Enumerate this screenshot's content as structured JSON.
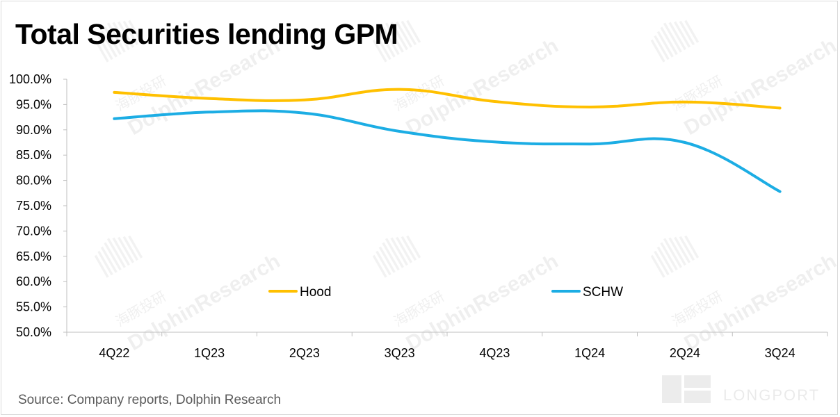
{
  "title": "Total Securities lending GPM",
  "source": "Source: Company reports, Dolphin Research",
  "watermark": {
    "text": "DolphinResearch",
    "cn_text": "海豚投研",
    "brand": "LONGPORT"
  },
  "chart_data": {
    "type": "line",
    "title": "Total Securities lending GPM",
    "categories": [
      "4Q22",
      "1Q23",
      "2Q23",
      "3Q23",
      "4Q23",
      "1Q24",
      "2Q24",
      "3Q24"
    ],
    "ylim": [
      0.5,
      1.0
    ],
    "yticks": [
      "100.0%",
      "95.0%",
      "90.0%",
      "85.0%",
      "80.0%",
      "75.0%",
      "70.0%",
      "65.0%",
      "60.0%",
      "55.0%",
      "50.0%"
    ],
    "ytick_values": [
      1.0,
      0.95,
      0.9,
      0.85,
      0.8,
      0.75,
      0.7,
      0.65,
      0.6,
      0.55,
      0.5
    ],
    "grid": false,
    "legend": "inside-lower-middle",
    "series": [
      {
        "name": "Hood",
        "color": "#FFC000",
        "values": [
          0.974,
          0.962,
          0.959,
          0.98,
          0.956,
          0.945,
          0.955,
          0.943
        ]
      },
      {
        "name": "SCHW",
        "color": "#1CADE4",
        "values": [
          0.922,
          0.935,
          0.933,
          0.897,
          0.876,
          0.872,
          0.875,
          0.778
        ]
      }
    ]
  }
}
